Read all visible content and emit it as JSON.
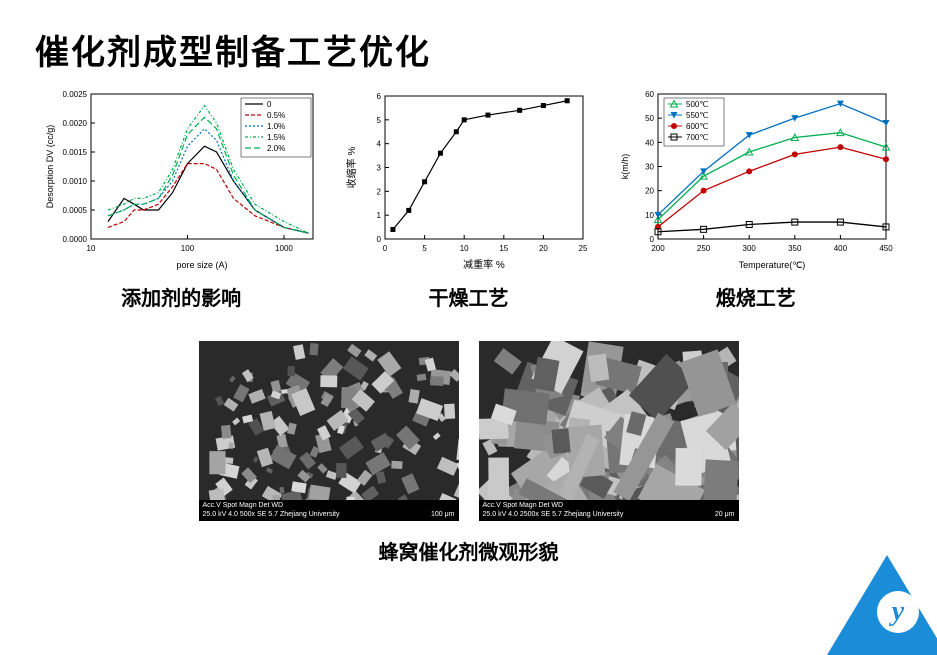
{
  "title": "催化剂成型制备工艺优化",
  "chart1": {
    "caption": "添加剂的影响",
    "xlabel": "pore size (A)",
    "ylabel": "Desorption DV (cc/g)",
    "xlim": [
      10,
      2000
    ],
    "ylim": [
      0,
      0.0025
    ],
    "yticks": [
      "0.0000",
      "0.0005",
      "0.0010",
      "0.0015",
      "0.0020",
      "0.0025"
    ],
    "xticks": [
      "10",
      "100",
      "1000"
    ],
    "label_fontsize": 9,
    "tick_fontsize": 8,
    "legend": [
      "0",
      "0.5%",
      "1.0%",
      "1.5%",
      "2.0%"
    ],
    "legend_colors": [
      "#000000",
      "#c00000",
      "#0070c0",
      "#00b050",
      "#00b050"
    ],
    "legend_dash": [
      "0",
      "4 2",
      "2 2",
      "3 2 1 2",
      "6 3"
    ],
    "bg": "#ffffff",
    "series": [
      {
        "color": "#000000",
        "dash": "0",
        "pts": [
          [
            15,
            0.0003
          ],
          [
            22,
            0.0007
          ],
          [
            28,
            0.0006
          ],
          [
            35,
            0.0005
          ],
          [
            50,
            0.0005
          ],
          [
            70,
            0.0008
          ],
          [
            100,
            0.0013
          ],
          [
            150,
            0.0016
          ],
          [
            200,
            0.0015
          ],
          [
            300,
            0.001
          ],
          [
            500,
            0.0005
          ],
          [
            1000,
            0.0002
          ],
          [
            1800,
            0.0001
          ]
        ]
      },
      {
        "color": "#c00000",
        "dash": "4 2",
        "pts": [
          [
            15,
            0.0002
          ],
          [
            22,
            0.0003
          ],
          [
            28,
            0.0005
          ],
          [
            35,
            0.0005
          ],
          [
            50,
            0.0006
          ],
          [
            70,
            0.0009
          ],
          [
            100,
            0.0013
          ],
          [
            150,
            0.0013
          ],
          [
            200,
            0.0012
          ],
          [
            300,
            0.0007
          ],
          [
            500,
            0.0004
          ],
          [
            1000,
            0.0002
          ],
          [
            1800,
            0.0001
          ]
        ]
      },
      {
        "color": "#0070c0",
        "dash": "2 2",
        "pts": [
          [
            15,
            0.0004
          ],
          [
            22,
            0.0005
          ],
          [
            28,
            0.0006
          ],
          [
            35,
            0.0006
          ],
          [
            50,
            0.0007
          ],
          [
            70,
            0.001
          ],
          [
            100,
            0.0016
          ],
          [
            150,
            0.0019
          ],
          [
            200,
            0.0017
          ],
          [
            300,
            0.001
          ],
          [
            500,
            0.0005
          ],
          [
            1000,
            0.0002
          ],
          [
            1800,
            0.0001
          ]
        ]
      },
      {
        "color": "#00b050",
        "dash": "3 2 1 2",
        "pts": [
          [
            15,
            0.0005
          ],
          [
            22,
            0.0006
          ],
          [
            28,
            0.0007
          ],
          [
            35,
            0.0007
          ],
          [
            50,
            0.0008
          ],
          [
            70,
            0.0012
          ],
          [
            100,
            0.0019
          ],
          [
            150,
            0.0023
          ],
          [
            200,
            0.002
          ],
          [
            300,
            0.0012
          ],
          [
            500,
            0.0006
          ],
          [
            1000,
            0.0003
          ],
          [
            1800,
            0.0001
          ]
        ]
      },
      {
        "color": "#00b050",
        "dash": "6 3",
        "pts": [
          [
            15,
            0.0004
          ],
          [
            22,
            0.0005
          ],
          [
            28,
            0.0006
          ],
          [
            35,
            0.0006
          ],
          [
            50,
            0.0007
          ],
          [
            70,
            0.0011
          ],
          [
            100,
            0.0018
          ],
          [
            150,
            0.0021
          ],
          [
            200,
            0.0019
          ],
          [
            300,
            0.0011
          ],
          [
            500,
            0.0005
          ],
          [
            1000,
            0.0002
          ],
          [
            1800,
            0.0001
          ]
        ]
      }
    ]
  },
  "chart2": {
    "caption": "干燥工艺",
    "xlabel": "减重率 %",
    "ylabel": "收缩率 %",
    "xlim": [
      0,
      25
    ],
    "ylim": [
      0,
      6
    ],
    "yticks": [
      "0",
      "1",
      "2",
      "3",
      "4",
      "5",
      "6"
    ],
    "xticks": [
      "0",
      "5",
      "10",
      "15",
      "20",
      "25"
    ],
    "label_fontsize": 10,
    "tick_fontsize": 8,
    "marker": "square",
    "color": "#000000",
    "pts": [
      [
        1,
        0.4
      ],
      [
        3,
        1.2
      ],
      [
        5,
        2.4
      ],
      [
        7,
        3.6
      ],
      [
        9,
        4.5
      ],
      [
        10,
        5.0
      ],
      [
        13,
        5.2
      ],
      [
        17,
        5.4
      ],
      [
        20,
        5.6
      ],
      [
        23,
        5.8
      ]
    ]
  },
  "chart3": {
    "caption": "煅烧工艺",
    "xlabel": "Temperature(℃)",
    "ylabel": "k(m/h)",
    "xlim": [
      200,
      450
    ],
    "ylim": [
      0,
      60
    ],
    "yticks": [
      "0",
      "10",
      "20",
      "30",
      "40",
      "50",
      "60"
    ],
    "xticks": [
      "200",
      "250",
      "300",
      "350",
      "400",
      "450"
    ],
    "label_fontsize": 9,
    "tick_fontsize": 8,
    "legend": [
      "500℃",
      "550℃",
      "600℃",
      "700℃"
    ],
    "legend_colors": [
      "#00b050",
      "#0070c0",
      "#c00000",
      "#000000"
    ],
    "legend_markers": [
      "triangle-open",
      "triangle-down",
      "circle",
      "square-open"
    ],
    "series": [
      {
        "color": "#00b050",
        "marker": "triangle-open",
        "pts": [
          [
            200,
            8
          ],
          [
            250,
            26
          ],
          [
            300,
            36
          ],
          [
            350,
            42
          ],
          [
            400,
            44
          ],
          [
            450,
            38
          ]
        ]
      },
      {
        "color": "#0070c0",
        "marker": "triangle-down",
        "pts": [
          [
            200,
            10
          ],
          [
            250,
            28
          ],
          [
            300,
            43
          ],
          [
            350,
            50
          ],
          [
            400,
            56
          ],
          [
            450,
            48
          ]
        ]
      },
      {
        "color": "#c00000",
        "marker": "circle",
        "pts": [
          [
            200,
            5
          ],
          [
            250,
            20
          ],
          [
            300,
            28
          ],
          [
            350,
            35
          ],
          [
            400,
            38
          ],
          [
            450,
            33
          ]
        ]
      },
      {
        "color": "#000000",
        "marker": "square-open",
        "pts": [
          [
            200,
            3
          ],
          [
            250,
            4
          ],
          [
            300,
            6
          ],
          [
            350,
            7
          ],
          [
            400,
            7
          ],
          [
            450,
            5
          ]
        ]
      }
    ]
  },
  "sem": {
    "caption": "蜂窝催化剂微观形貌",
    "bar_header": "Acc.V  Spot Magn  Det  WD",
    "bar1": "25.0 kV 4.0  500x   SE  5.7  Zhejiang University",
    "scale1": "100 μm",
    "bar2": "25.0 kV 4.0  2500x  SE  5.7  Zhejiang University",
    "scale2": "20 μm"
  },
  "logo_letter": "y"
}
